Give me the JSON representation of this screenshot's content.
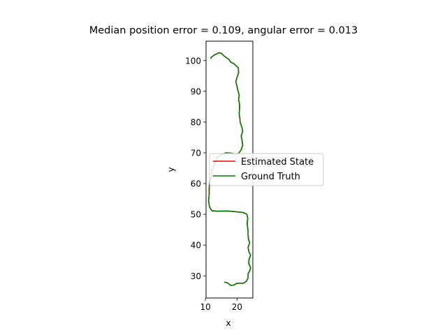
{
  "chart_data": {
    "type": "line",
    "title": "Median position error = 0.109, angular error = 0.013",
    "xlabel": "x",
    "ylabel": "y",
    "xlim": [
      10.2,
      25.0
    ],
    "ylim": [
      22.8,
      106.3
    ],
    "xticks": [
      10,
      20
    ],
    "yticks": [
      30,
      40,
      50,
      60,
      70,
      80,
      90,
      100
    ],
    "grid": false,
    "legend_position": "center-right",
    "series": [
      {
        "name": "Estimated State",
        "color": "#ff0000",
        "points": [
          [
            16.0,
            28.0
          ],
          [
            17.0,
            27.7
          ],
          [
            18.0,
            26.9
          ],
          [
            19.0,
            27.0
          ],
          [
            20.0,
            27.6
          ],
          [
            22.0,
            27.6
          ],
          [
            23.0,
            28.3
          ],
          [
            23.5,
            29.3
          ],
          [
            23.5,
            30.7
          ],
          [
            24.0,
            31.6
          ],
          [
            24.3,
            32.7
          ],
          [
            23.7,
            34.0
          ],
          [
            23.8,
            35.4
          ],
          [
            24.3,
            36.7
          ],
          [
            23.7,
            38.0
          ],
          [
            23.5,
            39.3
          ],
          [
            24.0,
            40.7
          ],
          [
            23.6,
            42.0
          ],
          [
            23.5,
            43.4
          ],
          [
            23.5,
            44.7
          ],
          [
            23.3,
            46.0
          ],
          [
            23.2,
            47.4
          ],
          [
            23.4,
            48.7
          ],
          [
            23.1,
            50.0
          ],
          [
            22.0,
            50.6
          ],
          [
            20.0,
            50.8
          ],
          [
            18.0,
            51.0
          ],
          [
            16.0,
            51.1
          ],
          [
            14.0,
            51.0
          ],
          [
            13.0,
            51.1
          ],
          [
            12.0,
            51.2
          ],
          [
            11.3,
            52.4
          ],
          [
            11.0,
            54.4
          ],
          [
            11.2,
            56.4
          ],
          [
            11.2,
            58.4
          ],
          [
            11.3,
            60.4
          ],
          [
            12.0,
            62.4
          ],
          [
            12.1,
            64.4
          ],
          [
            12.9,
            66.4
          ],
          [
            13.7,
            68.4
          ],
          [
            15.0,
            69.4
          ],
          [
            16.5,
            70.0
          ],
          [
            18.0,
            69.9
          ],
          [
            19.4,
            69.6
          ],
          [
            20.5,
            69.8
          ],
          [
            21.3,
            71.0
          ],
          [
            21.8,
            72.5
          ],
          [
            21.6,
            74.0
          ],
          [
            21.3,
            75.5
          ],
          [
            21.8,
            77.0
          ],
          [
            21.5,
            78.4
          ],
          [
            21.0,
            79.9
          ],
          [
            20.9,
            81.3
          ],
          [
            20.7,
            82.8
          ],
          [
            20.8,
            84.3
          ],
          [
            20.8,
            85.8
          ],
          [
            20.5,
            87.3
          ],
          [
            20.7,
            88.7
          ],
          [
            20.3,
            90.2
          ],
          [
            20.0,
            91.6
          ],
          [
            19.6,
            93.1
          ],
          [
            20.0,
            94.6
          ],
          [
            20.5,
            96.0
          ],
          [
            20.4,
            97.6
          ],
          [
            19.7,
            98.3
          ],
          [
            19.0,
            99.0
          ],
          [
            18.0,
            99.5
          ],
          [
            17.5,
            100.3
          ],
          [
            16.0,
            101.4
          ],
          [
            15.0,
            102.4
          ],
          [
            14.3,
            102.5
          ],
          [
            13.0,
            101.9
          ],
          [
            12.0,
            101.2
          ],
          [
            11.6,
            100.6
          ]
        ]
      },
      {
        "name": "Ground Truth",
        "color": "#007f00",
        "points": [
          [
            16.0,
            28.0
          ],
          [
            17.0,
            27.7
          ],
          [
            18.0,
            26.9
          ],
          [
            19.0,
            27.0
          ],
          [
            20.0,
            27.6
          ],
          [
            22.0,
            27.6
          ],
          [
            23.0,
            28.3
          ],
          [
            23.5,
            29.3
          ],
          [
            23.5,
            30.7
          ],
          [
            24.0,
            31.6
          ],
          [
            24.3,
            32.7
          ],
          [
            23.7,
            34.0
          ],
          [
            23.8,
            35.4
          ],
          [
            24.3,
            36.7
          ],
          [
            23.7,
            38.0
          ],
          [
            23.5,
            39.3
          ],
          [
            24.0,
            40.7
          ],
          [
            23.6,
            42.0
          ],
          [
            23.5,
            43.4
          ],
          [
            23.5,
            44.7
          ],
          [
            23.3,
            46.0
          ],
          [
            23.2,
            47.4
          ],
          [
            23.4,
            48.7
          ],
          [
            23.1,
            50.0
          ],
          [
            22.0,
            50.6
          ],
          [
            20.0,
            50.8
          ],
          [
            18.0,
            51.0
          ],
          [
            16.0,
            51.1
          ],
          [
            14.0,
            51.0
          ],
          [
            13.0,
            51.1
          ],
          [
            12.0,
            51.2
          ],
          [
            11.3,
            52.4
          ],
          [
            11.0,
            54.4
          ],
          [
            11.2,
            56.4
          ],
          [
            11.2,
            58.4
          ],
          [
            11.3,
            60.4
          ],
          [
            12.0,
            62.4
          ],
          [
            12.1,
            64.4
          ],
          [
            12.9,
            66.4
          ],
          [
            13.7,
            68.4
          ],
          [
            15.0,
            69.4
          ],
          [
            16.5,
            70.0
          ],
          [
            18.0,
            69.9
          ],
          [
            19.4,
            69.6
          ],
          [
            20.5,
            69.8
          ],
          [
            21.3,
            71.0
          ],
          [
            21.8,
            72.5
          ],
          [
            21.6,
            74.0
          ],
          [
            21.3,
            75.5
          ],
          [
            21.8,
            77.0
          ],
          [
            21.5,
            78.4
          ],
          [
            21.0,
            79.9
          ],
          [
            20.9,
            81.3
          ],
          [
            20.7,
            82.8
          ],
          [
            20.8,
            84.3
          ],
          [
            20.8,
            85.8
          ],
          [
            20.5,
            87.3
          ],
          [
            20.7,
            88.7
          ],
          [
            20.3,
            90.2
          ],
          [
            20.0,
            91.6
          ],
          [
            19.6,
            93.1
          ],
          [
            20.0,
            94.6
          ],
          [
            20.5,
            96.0
          ],
          [
            20.4,
            97.6
          ],
          [
            19.7,
            98.3
          ],
          [
            19.0,
            99.0
          ],
          [
            18.0,
            99.5
          ],
          [
            17.5,
            100.3
          ],
          [
            16.0,
            101.4
          ],
          [
            15.0,
            102.4
          ],
          [
            14.3,
            102.5
          ],
          [
            13.0,
            101.9
          ],
          [
            12.0,
            101.2
          ],
          [
            11.6,
            100.6
          ]
        ]
      }
    ]
  }
}
